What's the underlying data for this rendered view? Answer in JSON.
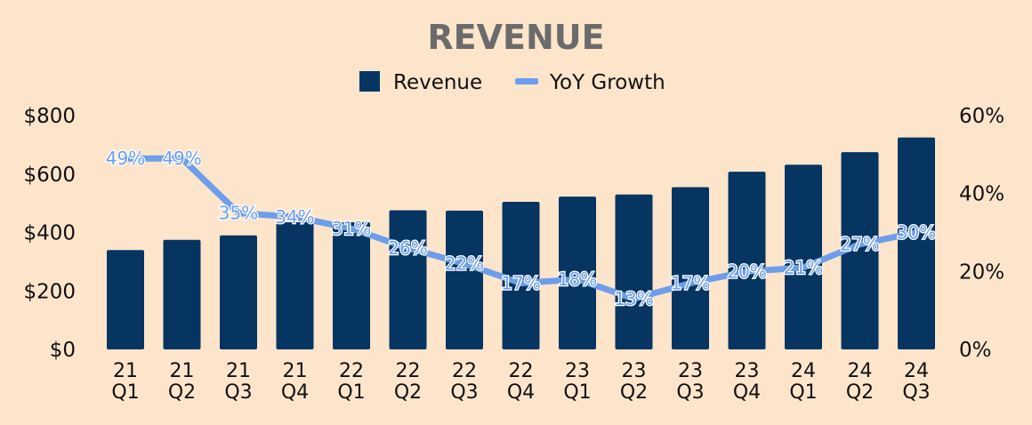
{
  "chart_data": {
    "type": "bar",
    "title": "REVENUE",
    "categories": [
      "21 Q1",
      "21 Q2",
      "21 Q3",
      "21 Q4",
      "22 Q1",
      "22 Q2",
      "22 Q3",
      "22 Q4",
      "23 Q1",
      "23 Q2",
      "23 Q3",
      "23 Q4",
      "24 Q1",
      "24 Q2",
      "24 Q3"
    ],
    "series": [
      {
        "name": "Revenue",
        "type": "bar",
        "axis": "left",
        "color": "#063561",
        "values": [
          340,
          375,
          390,
          435,
          435,
          476,
          475,
          505,
          523,
          530,
          555,
          608,
          632,
          675,
          725
        ]
      },
      {
        "name": "YoY Growth",
        "type": "line",
        "axis": "right",
        "color": "#6d9eeb",
        "values": [
          49,
          49,
          35,
          34,
          31,
          26,
          22,
          17,
          18,
          13,
          17,
          20,
          21,
          27,
          30
        ],
        "labels": [
          "49%",
          "49%",
          "35%",
          "34%",
          "31%",
          "26%",
          "22%",
          "17%",
          "18%",
          "13%",
          "17%",
          "20%",
          "21%",
          "27%",
          "30%"
        ]
      }
    ],
    "y_left": {
      "min": 0,
      "max": 800,
      "ticks": [
        "$0",
        "$200",
        "$400",
        "$600",
        "$800"
      ]
    },
    "y_right": {
      "min": 0,
      "max": 60,
      "ticks": [
        "0%",
        "20%",
        "40%",
        "60%"
      ]
    },
    "legend_position": "top-center",
    "grid": false
  }
}
